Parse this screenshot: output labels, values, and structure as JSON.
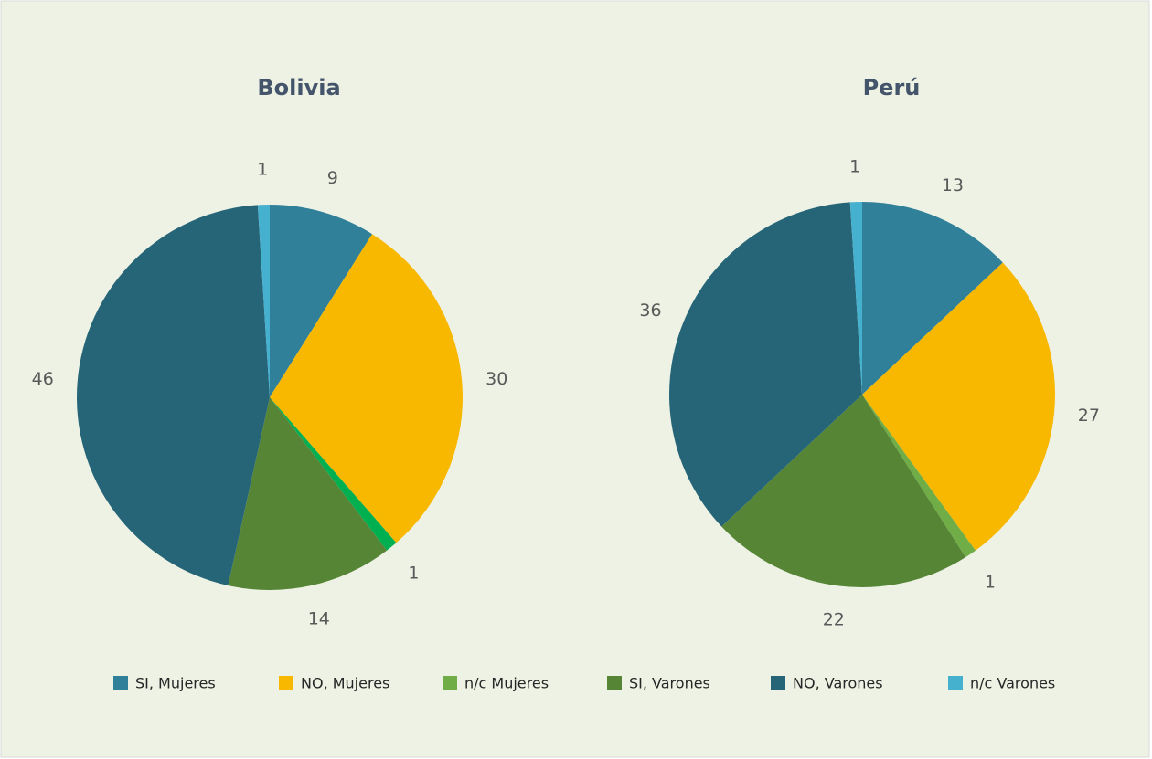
{
  "chart_data": [
    {
      "type": "pie",
      "title": "Bolivia",
      "values": [
        9,
        30,
        1,
        14,
        46,
        1
      ],
      "colors": [
        "#31809a",
        "#f9b800",
        "#00b050",
        "#568536",
        "#266577",
        "#46b0cf"
      ]
    },
    {
      "type": "pie",
      "title": "Perú",
      "values": [
        13,
        27,
        1,
        22,
        36,
        1
      ],
      "colors": [
        "#31809a",
        "#f9b800",
        "#70ad47",
        "#568536",
        "#266577",
        "#46b0cf"
      ]
    }
  ],
  "legend": [
    {
      "name": "SI, Mujeres",
      "color": "#31809a"
    },
    {
      "name": "NO, Mujeres",
      "color": "#f9b800"
    },
    {
      "name": "n/c Mujeres",
      "color": "#70ad47"
    },
    {
      "name": "SI, Varones",
      "color": "#568536"
    },
    {
      "name": "NO, Varones",
      "color": "#266577"
    },
    {
      "name": "n/c Varones",
      "color": "#46b0cf"
    }
  ]
}
